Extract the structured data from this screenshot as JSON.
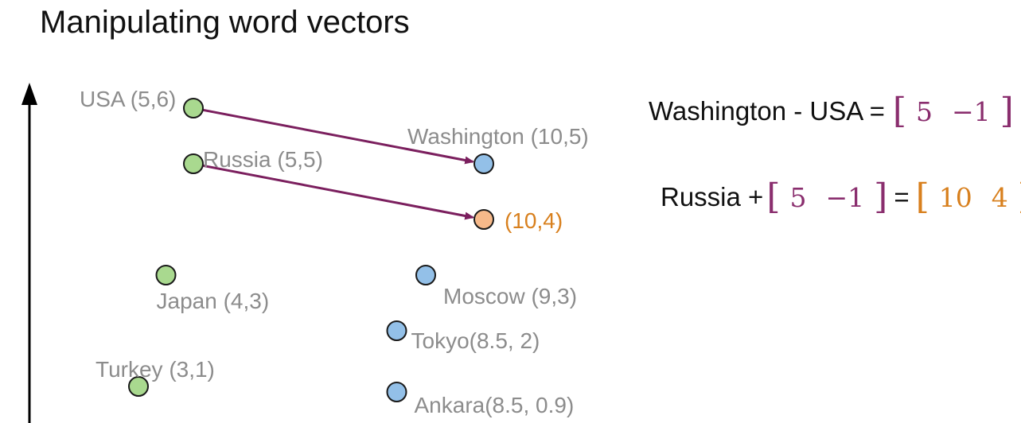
{
  "title": "Manipulating word vectors",
  "colors": {
    "country": "#a9d98f",
    "city": "#93c0e8",
    "result": "#f6b98a",
    "arrow": "#7b1f5e",
    "label": "#8c8c8c",
    "result_label": "#d8801e",
    "vector_purple": "#8a2e6e"
  },
  "chart_data": {
    "type": "scatter",
    "points": [
      {
        "label": "USA (5,6)",
        "x": 5,
        "y": 6,
        "group": "country"
      },
      {
        "label": "Russia (5,5)",
        "x": 5,
        "y": 5,
        "group": "country"
      },
      {
        "label": "Japan (4,3)",
        "x": 4,
        "y": 3,
        "group": "country"
      },
      {
        "label": "Turkey (3,1)",
        "x": 3,
        "y": 1,
        "group": "country"
      },
      {
        "label": "Washington  (10,5)",
        "x": 10,
        "y": 5,
        "group": "city"
      },
      {
        "label": "Moscow (9,3)",
        "x": 9,
        "y": 3,
        "group": "city"
      },
      {
        "label": "Tokyo(8.5, 2)",
        "x": 8.5,
        "y": 2,
        "group": "city"
      },
      {
        "label": "Ankara(8.5, 0.9)",
        "x": 8.5,
        "y": 0.9,
        "group": "city"
      },
      {
        "label": "(10,4)",
        "x": 10,
        "y": 4,
        "group": "result"
      }
    ],
    "arrows": [
      {
        "from": [
          5,
          6
        ],
        "to": [
          10,
          5
        ]
      },
      {
        "from": [
          5,
          5
        ],
        "to": [
          10,
          4
        ]
      }
    ]
  },
  "equations": {
    "eq1": {
      "left": "Washington - USA =",
      "vector": [
        "5",
        "−1"
      ]
    },
    "eq2": {
      "left": "Russia +",
      "vector": [
        "5",
        "−1"
      ],
      "equals": "=",
      "result": [
        "10",
        "4"
      ]
    }
  }
}
